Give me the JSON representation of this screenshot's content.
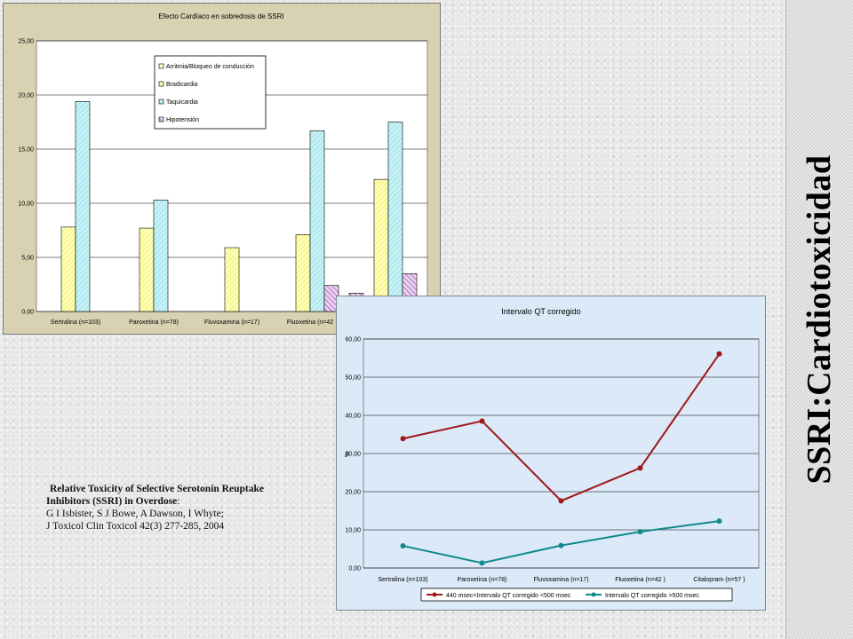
{
  "slide": {
    "side_title": "SSRI:Cardiotoxicidad",
    "citation": {
      "line1": "Relative Toxicity of Selective Serotonin Reuptake",
      "line2_bold": "Inhibitors (SSRI)  in Overdose",
      "line2_rest": ":",
      "line3": "G I Isbister, S J Bowe, A Dawson, I Whyte;",
      "line4": "J Toxicol Clin Toxicol 42(3) 277-285, 2004"
    }
  },
  "chart_data": [
    {
      "type": "bar",
      "title": "Efecto Cardíaco en sobredosis de SSRI",
      "categories": [
        "Sertralina (n=103)",
        "Paroxetina (n=78)",
        "Fluvoxamina (n=17)",
        "Fluoxetina (n=42",
        ""
      ],
      "series": [
        {
          "name": "Arritmia/Bloqueo de conducción",
          "values": [
            null,
            null,
            null,
            null,
            null
          ],
          "color": "#ffffc8",
          "pattern": "none"
        },
        {
          "name": "Bradicardia",
          "values": [
            7.8,
            7.7,
            5.9,
            7.1,
            12.2
          ],
          "color": "#ffffb0",
          "pattern": "diag"
        },
        {
          "name": "Taquicardia",
          "values": [
            19.4,
            10.3,
            null,
            16.7,
            17.5
          ],
          "color": "#c6f2f6",
          "pattern": "diag"
        },
        {
          "name": "Hipotensión",
          "values": [
            null,
            null,
            null,
            2.4,
            3.5
          ],
          "color": "#d9a8e6",
          "pattern": "hatch"
        }
      ],
      "extra_bars": [
        {
          "category_index": 4,
          "value": 1.7,
          "color": "#d9a8e6"
        }
      ],
      "ylim": [
        0,
        25
      ],
      "yticks": [
        "0,00",
        "5,00",
        "10,00",
        "15,00",
        "20,00",
        "25,00"
      ],
      "ytick_values": [
        0,
        5,
        10,
        15,
        20,
        25
      ],
      "grid": true,
      "legend_position": "top-center"
    },
    {
      "type": "line",
      "title": "Intervalo QT corregido",
      "ylabel": "%",
      "categories": [
        "Sertralina (n=103)",
        "Paroxetina (n=78)",
        "Fluvoxamina (n=17)",
        "Fluoxetina (n=42 )",
        "Citalopram (n=57 )"
      ],
      "series": [
        {
          "name": "440 msec<Intervalo QT corregido <500 msec",
          "values": [
            33.9,
            38.5,
            17.6,
            26.2,
            56.1
          ],
          "color": "#a01818"
        },
        {
          "name": "Intervalo QT corregido >500 msec",
          "values": [
            5.8,
            1.3,
            5.9,
            9.5,
            12.3
          ],
          "color": "#108a8a"
        }
      ],
      "ylim": [
        0,
        60
      ],
      "yticks": [
        "0,00",
        "10,00",
        "20,00",
        "30,00",
        "40,00",
        "50,00",
        "60,00"
      ],
      "ytick_values": [
        0,
        10,
        20,
        30,
        40,
        50,
        60
      ],
      "grid": true,
      "legend_position": "bottom"
    }
  ]
}
